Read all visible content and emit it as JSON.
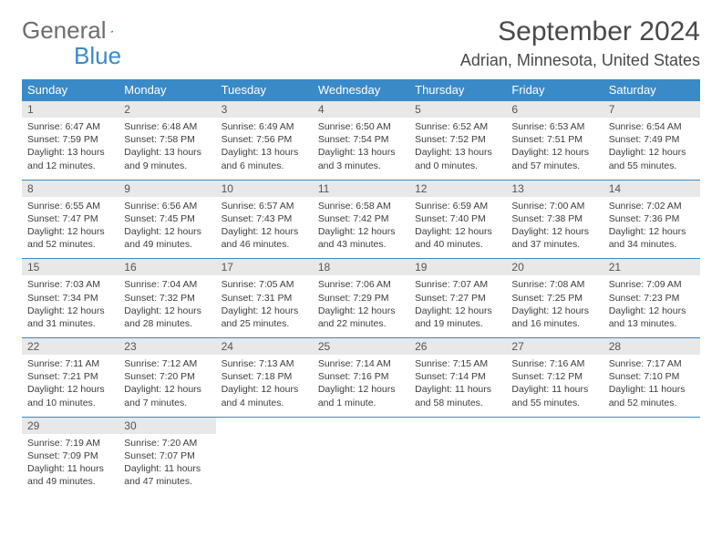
{
  "logo": {
    "text1": "General",
    "text2": "Blue"
  },
  "title": "September 2024",
  "subtitle": "Adrian, Minnesota, United States",
  "colors": {
    "header_bg": "#3a8ac8",
    "header_fg": "#ffffff",
    "daynum_bg": "#e8e8e8",
    "text": "#3d3d3d",
    "title": "#4a4a4a"
  },
  "day_headers": [
    "Sunday",
    "Monday",
    "Tuesday",
    "Wednesday",
    "Thursday",
    "Friday",
    "Saturday"
  ],
  "weeks": [
    [
      {
        "n": "1",
        "sr": "6:47 AM",
        "ss": "7:59 PM",
        "dl": "13 hours and 12 minutes."
      },
      {
        "n": "2",
        "sr": "6:48 AM",
        "ss": "7:58 PM",
        "dl": "13 hours and 9 minutes."
      },
      {
        "n": "3",
        "sr": "6:49 AM",
        "ss": "7:56 PM",
        "dl": "13 hours and 6 minutes."
      },
      {
        "n": "4",
        "sr": "6:50 AM",
        "ss": "7:54 PM",
        "dl": "13 hours and 3 minutes."
      },
      {
        "n": "5",
        "sr": "6:52 AM",
        "ss": "7:52 PM",
        "dl": "13 hours and 0 minutes."
      },
      {
        "n": "6",
        "sr": "6:53 AM",
        "ss": "7:51 PM",
        "dl": "12 hours and 57 minutes."
      },
      {
        "n": "7",
        "sr": "6:54 AM",
        "ss": "7:49 PM",
        "dl": "12 hours and 55 minutes."
      }
    ],
    [
      {
        "n": "8",
        "sr": "6:55 AM",
        "ss": "7:47 PM",
        "dl": "12 hours and 52 minutes."
      },
      {
        "n": "9",
        "sr": "6:56 AM",
        "ss": "7:45 PM",
        "dl": "12 hours and 49 minutes."
      },
      {
        "n": "10",
        "sr": "6:57 AM",
        "ss": "7:43 PM",
        "dl": "12 hours and 46 minutes."
      },
      {
        "n": "11",
        "sr": "6:58 AM",
        "ss": "7:42 PM",
        "dl": "12 hours and 43 minutes."
      },
      {
        "n": "12",
        "sr": "6:59 AM",
        "ss": "7:40 PM",
        "dl": "12 hours and 40 minutes."
      },
      {
        "n": "13",
        "sr": "7:00 AM",
        "ss": "7:38 PM",
        "dl": "12 hours and 37 minutes."
      },
      {
        "n": "14",
        "sr": "7:02 AM",
        "ss": "7:36 PM",
        "dl": "12 hours and 34 minutes."
      }
    ],
    [
      {
        "n": "15",
        "sr": "7:03 AM",
        "ss": "7:34 PM",
        "dl": "12 hours and 31 minutes."
      },
      {
        "n": "16",
        "sr": "7:04 AM",
        "ss": "7:32 PM",
        "dl": "12 hours and 28 minutes."
      },
      {
        "n": "17",
        "sr": "7:05 AM",
        "ss": "7:31 PM",
        "dl": "12 hours and 25 minutes."
      },
      {
        "n": "18",
        "sr": "7:06 AM",
        "ss": "7:29 PM",
        "dl": "12 hours and 22 minutes."
      },
      {
        "n": "19",
        "sr": "7:07 AM",
        "ss": "7:27 PM",
        "dl": "12 hours and 19 minutes."
      },
      {
        "n": "20",
        "sr": "7:08 AM",
        "ss": "7:25 PM",
        "dl": "12 hours and 16 minutes."
      },
      {
        "n": "21",
        "sr": "7:09 AM",
        "ss": "7:23 PM",
        "dl": "12 hours and 13 minutes."
      }
    ],
    [
      {
        "n": "22",
        "sr": "7:11 AM",
        "ss": "7:21 PM",
        "dl": "12 hours and 10 minutes."
      },
      {
        "n": "23",
        "sr": "7:12 AM",
        "ss": "7:20 PM",
        "dl": "12 hours and 7 minutes."
      },
      {
        "n": "24",
        "sr": "7:13 AM",
        "ss": "7:18 PM",
        "dl": "12 hours and 4 minutes."
      },
      {
        "n": "25",
        "sr": "7:14 AM",
        "ss": "7:16 PM",
        "dl": "12 hours and 1 minute."
      },
      {
        "n": "26",
        "sr": "7:15 AM",
        "ss": "7:14 PM",
        "dl": "11 hours and 58 minutes."
      },
      {
        "n": "27",
        "sr": "7:16 AM",
        "ss": "7:12 PM",
        "dl": "11 hours and 55 minutes."
      },
      {
        "n": "28",
        "sr": "7:17 AM",
        "ss": "7:10 PM",
        "dl": "11 hours and 52 minutes."
      }
    ],
    [
      {
        "n": "29",
        "sr": "7:19 AM",
        "ss": "7:09 PM",
        "dl": "11 hours and 49 minutes."
      },
      {
        "n": "30",
        "sr": "7:20 AM",
        "ss": "7:07 PM",
        "dl": "11 hours and 47 minutes."
      },
      null,
      null,
      null,
      null,
      null
    ]
  ],
  "labels": {
    "sunrise": "Sunrise:",
    "sunset": "Sunset:",
    "daylight": "Daylight:"
  }
}
